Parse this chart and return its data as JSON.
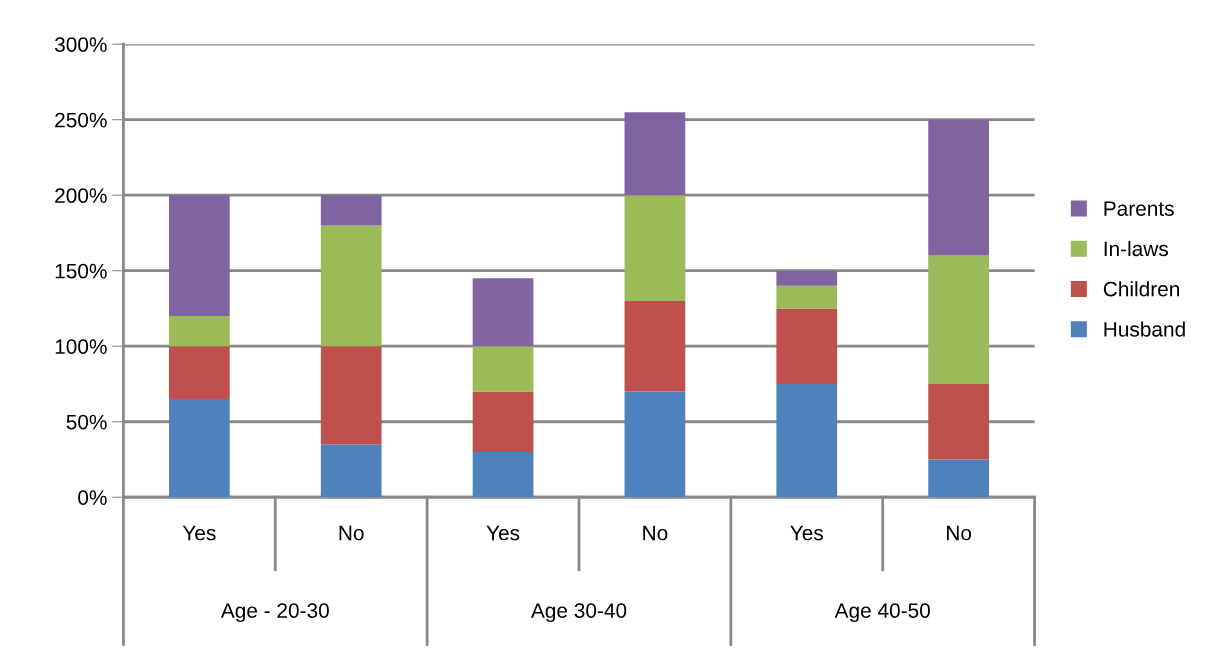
{
  "chart_data": {
    "type": "bar",
    "stacked": true,
    "categories": [
      "Yes",
      "No",
      "Yes",
      "No",
      "Yes",
      "No"
    ],
    "series": [
      {
        "name": "Husband",
        "color": "#4f81bd",
        "values": [
          65,
          35,
          30,
          70,
          75,
          25
        ]
      },
      {
        "name": "Children",
        "color": "#c0504d",
        "values": [
          35,
          65,
          40,
          60,
          50,
          50
        ]
      },
      {
        "name": "In-laws",
        "color": "#9bbb59",
        "values": [
          20,
          80,
          30,
          70,
          15,
          85
        ]
      },
      {
        "name": "Parents",
        "color": "#8064a2",
        "values": [
          80,
          20,
          45,
          55,
          10,
          90
        ]
      }
    ],
    "ylim": [
      0,
      300
    ],
    "yticks": [
      {
        "value": 0,
        "label": "0%"
      },
      {
        "value": 50,
        "label": "50%"
      },
      {
        "value": 100,
        "label": "100%"
      },
      {
        "value": 150,
        "label": "150%"
      },
      {
        "value": 200,
        "label": "200%"
      },
      {
        "value": 250,
        "label": "250%"
      },
      {
        "value": 300,
        "label": "300%"
      }
    ],
    "grid": "y",
    "legend": "right",
    "annotations": [
      "Age - 20-30",
      "Age 30-40",
      "Age 40-50"
    ]
  }
}
